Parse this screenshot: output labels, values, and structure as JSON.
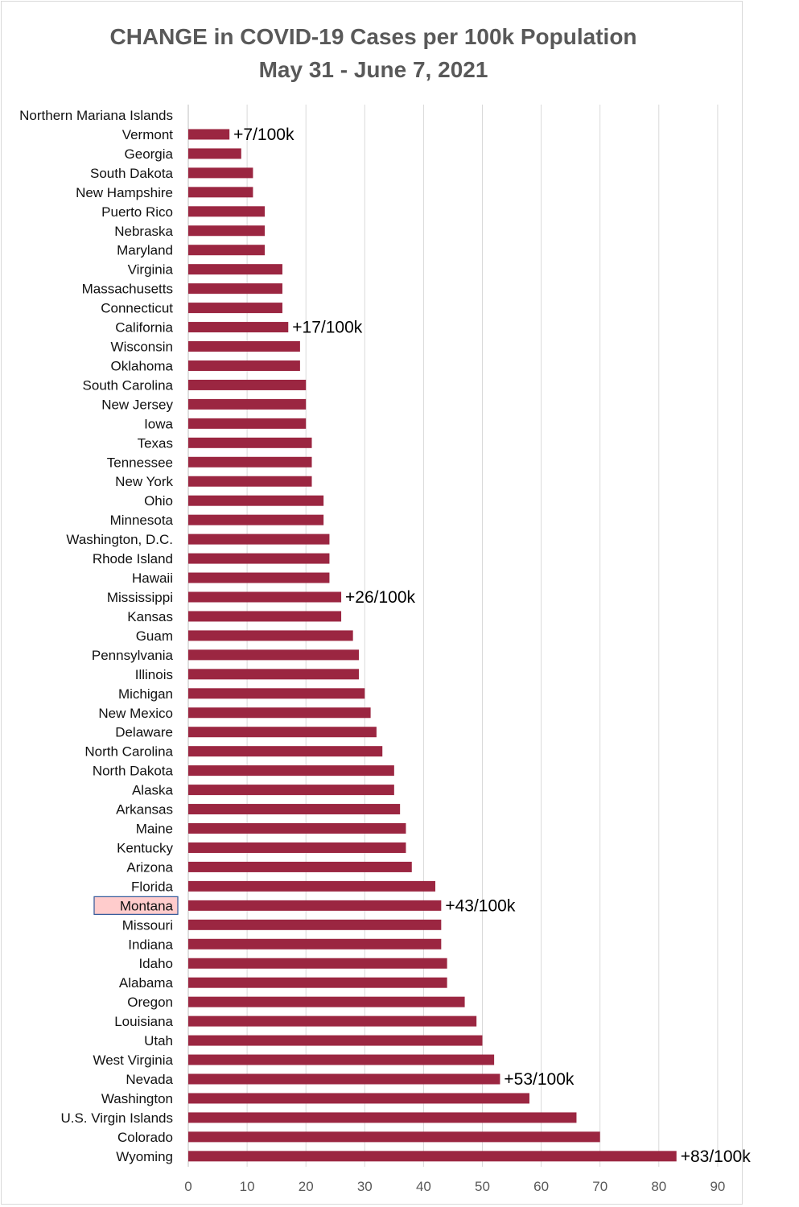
{
  "chart_data": {
    "type": "bar",
    "orientation": "horizontal",
    "title": "CHANGE in COVID-19 Cases per 100k Population",
    "subtitle": "May 31 - June 7, 2021",
    "xlabel": "",
    "ylabel": "",
    "xlim": [
      0,
      90
    ],
    "xticks": [
      0,
      10,
      20,
      30,
      40,
      50,
      60,
      70,
      80,
      90
    ],
    "grid": true,
    "bar_color": "#9b2641",
    "highlight_category": "Montana",
    "highlight_color": "#ffcccc",
    "categories": [
      "Northern Mariana Islands",
      "Vermont",
      "Georgia",
      "South Dakota",
      "New Hampshire",
      "Puerto Rico",
      "Nebraska",
      "Maryland",
      "Virginia",
      "Massachusetts",
      "Connecticut",
      "California",
      "Wisconsin",
      "Oklahoma",
      "South Carolina",
      "New Jersey",
      "Iowa",
      "Texas",
      "Tennessee",
      "New York",
      "Ohio",
      "Minnesota",
      "Washington, D.C.",
      "Rhode Island",
      "Hawaii",
      "Mississippi",
      "Kansas",
      "Guam",
      "Pennsylvania",
      "Illinois",
      "Michigan",
      "New Mexico",
      "Delaware",
      "North Carolina",
      "North Dakota",
      "Alaska",
      "Arkansas",
      "Maine",
      "Kentucky",
      "Arizona",
      "Florida",
      "Montana",
      "Missouri",
      "Indiana",
      "Idaho",
      "Alabama",
      "Oregon",
      "Louisiana",
      "Utah",
      "West Virginia",
      "Nevada",
      "Washington",
      "U.S. Virgin Islands",
      "Colorado",
      "Wyoming"
    ],
    "values": [
      0,
      7,
      9,
      11,
      11,
      13,
      13,
      13,
      16,
      16,
      16,
      17,
      19,
      19,
      20,
      20,
      20,
      21,
      21,
      21,
      23,
      23,
      24,
      24,
      24,
      26,
      26,
      28,
      29,
      29,
      30,
      31,
      32,
      33,
      35,
      35,
      36,
      37,
      37,
      38,
      42,
      43,
      43,
      43,
      44,
      44,
      47,
      49,
      50,
      52,
      53,
      58,
      66,
      70,
      83
    ],
    "annotations": [
      {
        "category": "Vermont",
        "text": "+7/100k"
      },
      {
        "category": "California",
        "text": "+17/100k"
      },
      {
        "category": "Mississippi",
        "text": "+26/100k"
      },
      {
        "category": "Montana",
        "text": "+43/100k"
      },
      {
        "category": "Nevada",
        "text": "+53/100k"
      },
      {
        "category": "Wyoming",
        "text": "+83/100k"
      }
    ]
  }
}
